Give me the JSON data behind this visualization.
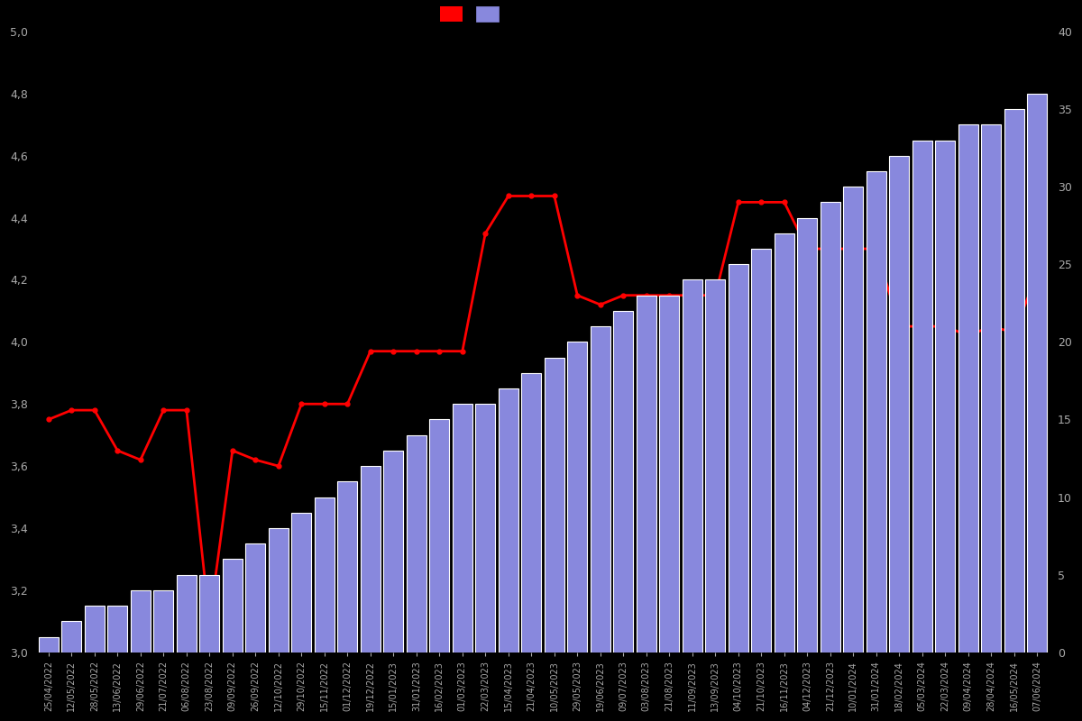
{
  "dates": [
    "25/04/2022",
    "12/05/2022",
    "28/05/2022",
    "13/06/2022",
    "29/06/2022",
    "21/07/2022",
    "06/08/2022",
    "23/08/2022",
    "09/09/2022",
    "26/09/2022",
    "12/10/2022",
    "29/10/2022",
    "15/11/2022",
    "01/12/2022",
    "19/12/2022",
    "15/01/2023",
    "31/01/2023",
    "16/02/2023",
    "01/03/2023",
    "22/03/2023",
    "15/04/2023",
    "21/04/2023",
    "10/05/2023",
    "29/05/2023",
    "19/06/2023",
    "09/07/2023",
    "03/08/2023",
    "21/08/2023",
    "11/09/2023",
    "13/09/2023",
    "04/10/2023",
    "21/10/2023",
    "16/11/2023",
    "04/12/2023",
    "21/12/2023",
    "10/01/2024",
    "31/01/2024",
    "18/02/2024",
    "05/03/2024",
    "22/03/2024",
    "09/04/2024",
    "28/04/2024",
    "16/05/2024",
    "07/06/2024"
  ],
  "bar_values": [
    1,
    2,
    3,
    3,
    4,
    4,
    5,
    5,
    6,
    7,
    8,
    9,
    10,
    11,
    12,
    13,
    14,
    15,
    16,
    16,
    17,
    18,
    19,
    20,
    21,
    22,
    23,
    23,
    24,
    24,
    25,
    26,
    27,
    28,
    29,
    30,
    31,
    32,
    33,
    33,
    34,
    34,
    35,
    36
  ],
  "line_values": [
    3.75,
    3.78,
    3.78,
    3.65,
    3.62,
    3.78,
    3.78,
    3.1,
    3.65,
    3.62,
    3.6,
    3.8,
    3.8,
    3.8,
    3.97,
    3.97,
    3.97,
    3.97,
    3.97,
    4.35,
    4.47,
    4.47,
    4.47,
    4.15,
    4.12,
    4.15,
    4.15,
    4.15,
    4.15,
    4.15,
    4.45,
    4.45,
    4.45,
    4.3,
    4.3,
    4.3,
    4.3,
    4.05,
    4.05,
    4.05,
    4.02,
    4.05,
    4.03,
    4.22
  ],
  "bar_color": "#8888dd",
  "bar_edge_color": "#ffffff",
  "line_color": "#ff0000",
  "background_color": "#000000",
  "text_color": "#aaaaaa",
  "left_ylim": [
    3.0,
    5.0
  ],
  "right_ylim": [
    0,
    40
  ],
  "left_yticks": [
    3.0,
    3.2,
    3.4,
    3.6,
    3.8,
    4.0,
    4.2,
    4.4,
    4.6,
    4.8,
    5.0
  ],
  "right_yticks": [
    0,
    5,
    10,
    15,
    20,
    25,
    30,
    35,
    40
  ],
  "legend_labels": [
    "",
    ""
  ]
}
